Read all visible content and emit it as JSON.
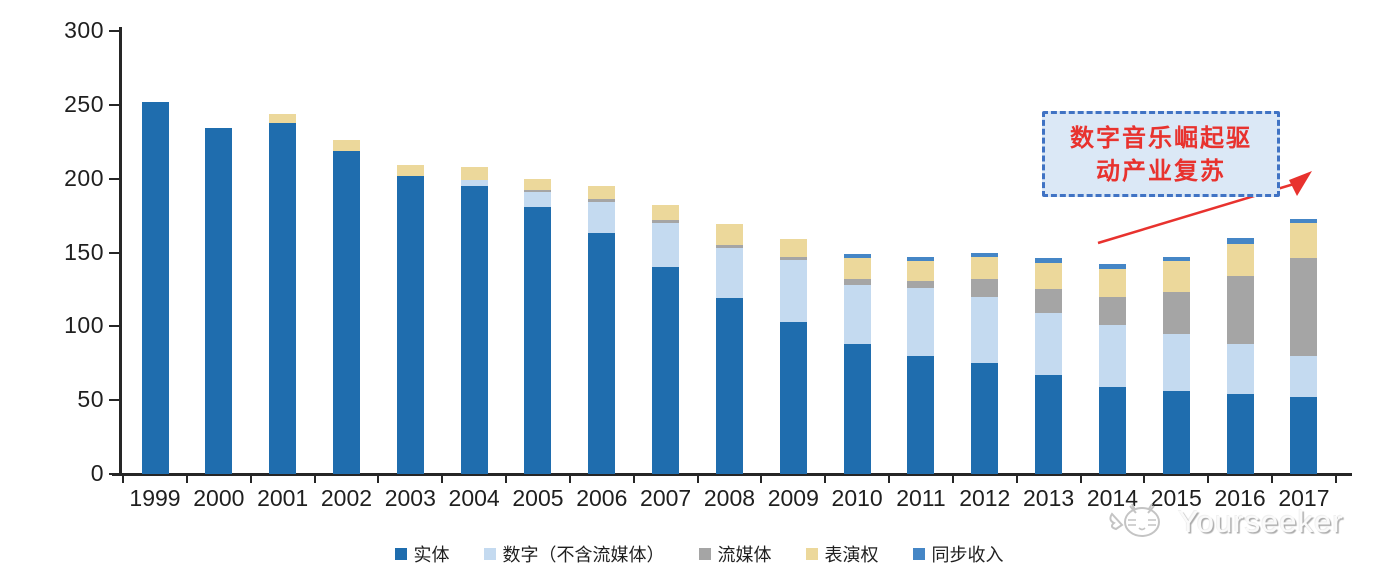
{
  "chart_data": {
    "type": "bar",
    "stacked": true,
    "title": "",
    "xlabel": "",
    "ylabel": "",
    "ylim": [
      0,
      300
    ],
    "yticks": [
      0,
      50,
      100,
      150,
      200,
      250,
      300
    ],
    "grid": false,
    "legend_position": "bottom",
    "categories": [
      "1999",
      "2000",
      "2001",
      "2002",
      "2003",
      "2004",
      "2005",
      "2006",
      "2007",
      "2008",
      "2009",
      "2010",
      "2011",
      "2012",
      "2013",
      "2014",
      "2015",
      "2016",
      "2017"
    ],
    "series": [
      {
        "name": "实体",
        "key": "physical",
        "color": "#1f6dae",
        "values": [
          252,
          234,
          238,
          219,
          202,
          195,
          181,
          163,
          140,
          119,
          103,
          88,
          80,
          75,
          67,
          59,
          56,
          54,
          52
        ]
      },
      {
        "name": "数字（不含流媒体）",
        "key": "digital-excl-streaming",
        "color": "#c4daf0",
        "values": [
          0,
          0,
          0,
          0,
          0,
          4,
          10,
          21,
          30,
          34,
          42,
          40,
          46,
          45,
          42,
          42,
          39,
          34,
          28
        ]
      },
      {
        "name": "流媒体",
        "key": "streaming",
        "color": "#a5a5a5",
        "values": [
          0,
          0,
          0,
          0,
          0,
          0,
          1,
          2,
          2,
          2,
          2,
          4,
          5,
          12,
          16,
          19,
          28,
          46,
          66
        ]
      },
      {
        "name": "表演权",
        "key": "performance-rights",
        "color": "#ecd89b",
        "values": [
          0,
          0,
          6,
          7,
          7,
          9,
          8,
          9,
          10,
          14,
          12,
          14,
          13,
          15,
          18,
          19,
          21,
          22,
          24
        ]
      },
      {
        "name": "同步收入",
        "key": "sync-revenue",
        "color": "#4586c6",
        "values": [
          0,
          0,
          0,
          0,
          0,
          0,
          0,
          0,
          0,
          0,
          0,
          3,
          3,
          3,
          3,
          3,
          3,
          4,
          3
        ]
      }
    ]
  },
  "annotation": {
    "line1": "数字音乐崛起驱",
    "line2": "动产业复苏",
    "text_color": "#e8322e",
    "border_color": "#4073c4",
    "fill_color": "#dbe8f6",
    "arrow_color": "#e8322e"
  },
  "watermark": {
    "text": "Yourseeker",
    "icon": "cat-logo-icon"
  }
}
